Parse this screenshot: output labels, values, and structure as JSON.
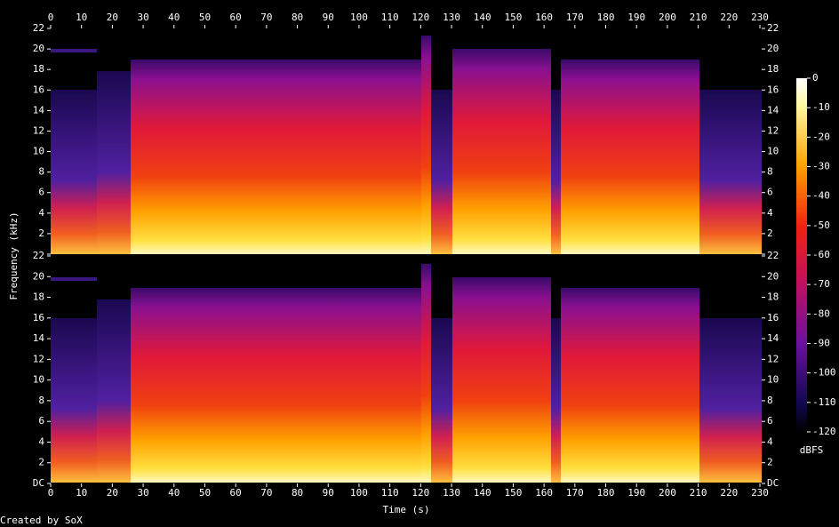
{
  "chart_data": {
    "type": "spectrogram",
    "x_label": "Time (s)",
    "y_label": "Frequency (kHz)",
    "xlim": [
      0,
      230
    ],
    "xticks": [
      0,
      10,
      20,
      30,
      40,
      50,
      60,
      70,
      80,
      90,
      100,
      110,
      120,
      130,
      140,
      150,
      160,
      170,
      180,
      190,
      200,
      210,
      220,
      230
    ],
    "ylim": [
      0,
      22
    ],
    "yticks": [
      {
        "value": 0,
        "label": "DC"
      },
      2,
      4,
      6,
      8,
      10,
      12,
      14,
      16,
      18,
      20,
      22
    ],
    "colorbar_label": "dBFS",
    "clim": [
      -120,
      0
    ],
    "cticks": [
      0,
      -10,
      -20,
      -30,
      -40,
      -50,
      -60,
      -70,
      -80,
      -90,
      -100,
      -110,
      -120
    ],
    "footer": "Created by SoX"
  }
}
